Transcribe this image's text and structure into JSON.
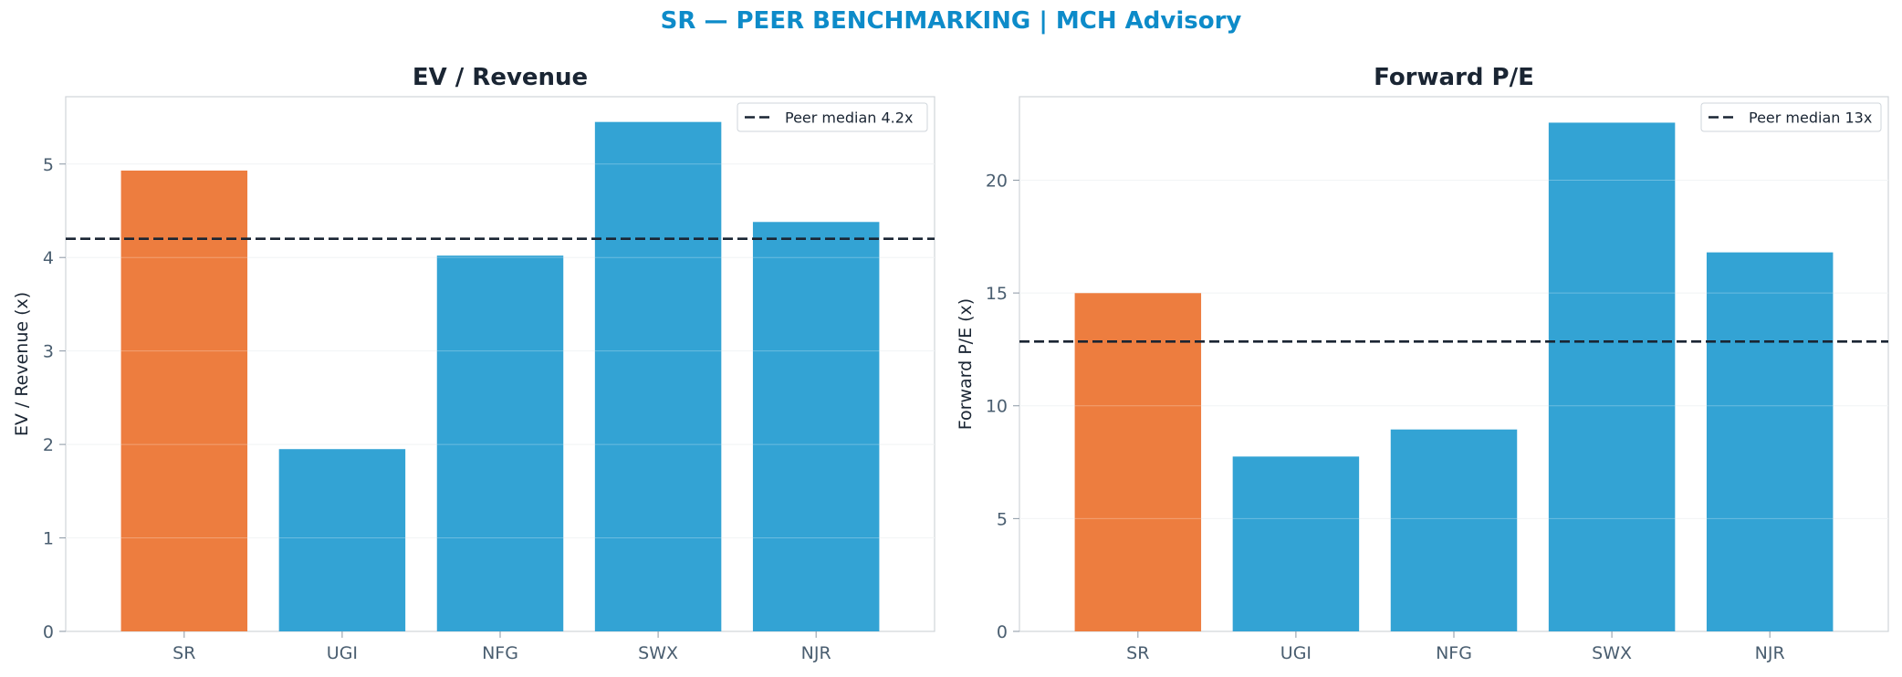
{
  "suptitle": "SR — PEER BENCHMARKING | MCH Advisory",
  "colors": {
    "highlight": "#ed7d3f",
    "peer": "#33a3d4",
    "median_line": "#1a2533",
    "title": "#0d8bc9"
  },
  "chart_data": [
    {
      "type": "bar",
      "title": "EV / Revenue",
      "ylabel": "EV / Revenue (x)",
      "categories": [
        "SR",
        "UGI",
        "NFG",
        "SWX",
        "NJR"
      ],
      "values": [
        4.93,
        1.95,
        4.02,
        5.45,
        4.38
      ],
      "highlight": "SR",
      "ylim": [
        0,
        5.72
      ],
      "yticks": [
        0,
        1,
        2,
        3,
        4,
        5
      ],
      "reference_line": {
        "label": "Peer median 4.2x",
        "value": 4.2,
        "style": "dashed"
      },
      "legend": "top-right",
      "grid": "y"
    },
    {
      "type": "bar",
      "title": "Forward P/E",
      "ylabel": "Forward P/E (x)",
      "categories": [
        "SR",
        "UGI",
        "NFG",
        "SWX",
        "NJR"
      ],
      "values": [
        15.0,
        7.75,
        8.95,
        22.55,
        16.8
      ],
      "highlight": "SR",
      "ylim": [
        0,
        23.7
      ],
      "yticks": [
        0,
        5,
        10,
        15,
        20
      ],
      "reference_line": {
        "label": "Peer median 13x",
        "value": 12.85,
        "style": "dashed"
      },
      "legend": "top-right",
      "grid": "y"
    }
  ]
}
